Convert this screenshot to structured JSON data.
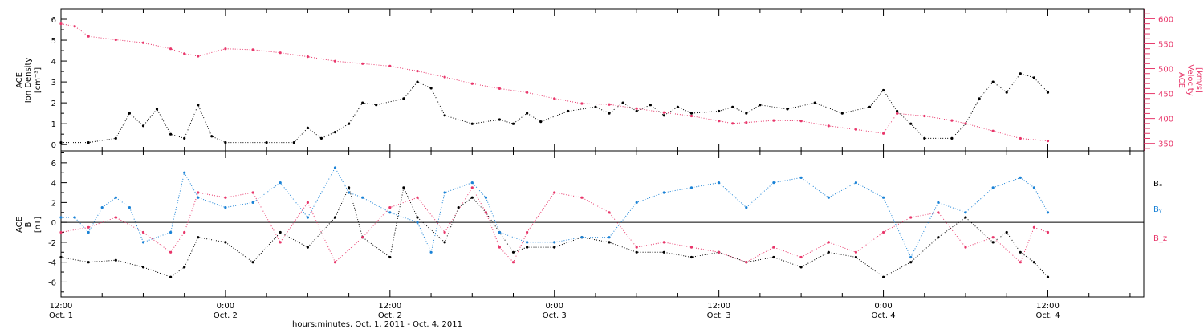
{
  "chart_data": [
    {
      "type": "scatter",
      "panel": "top",
      "xlabel": "hours:minutes, Oct.  1, 2011 - Oct.  4, 2011",
      "x_ticks_major": [
        {
          "hours": 0,
          "time": "12:00",
          "date": "Oct. 1"
        },
        {
          "hours": 12,
          "time": "0:00",
          "date": "Oct. 2"
        },
        {
          "hours": 24,
          "time": "12:00",
          "date": "Oct. 2"
        },
        {
          "hours": 36,
          "time": "0:00",
          "date": "Oct. 3"
        },
        {
          "hours": 48,
          "time": "12:00",
          "date": "Oct. 3"
        },
        {
          "hours": 60,
          "time": "0:00",
          "date": "Oct. 4"
        },
        {
          "hours": 72,
          "time": "12:00",
          "date": "Oct. 4"
        }
      ],
      "xlim_hours": [
        0,
        79
      ],
      "left_axis": {
        "label_lines": [
          "ACE",
          "Ion Density"
        ],
        "unit": "[cm⁻³]",
        "ylim": [
          -0.3,
          6.5
        ],
        "ticks": [
          0,
          1,
          2,
          3,
          4,
          5,
          6
        ],
        "color": "#000000"
      },
      "right_axis": {
        "label_lines": [
          "ACE",
          "Velocity"
        ],
        "unit": "[km/s]",
        "ylim": [
          335,
          620
        ],
        "ticks": [
          350,
          400,
          450,
          500,
          550,
          600
        ],
        "color": "#e8366a"
      },
      "series": [
        {
          "axis": "left",
          "color": "#000000",
          "points_hours_value": [
            [
              0,
              0.1
            ],
            [
              2,
              0.1
            ],
            [
              4,
              0.3
            ],
            [
              5,
              1.5
            ],
            [
              6,
              0.9
            ],
            [
              7,
              1.7
            ],
            [
              8,
              0.5
            ],
            [
              9,
              0.3
            ],
            [
              10,
              1.9
            ],
            [
              11,
              0.4
            ],
            [
              12,
              0.1
            ],
            [
              15,
              0.1
            ],
            [
              17,
              0.1
            ],
            [
              18,
              0.8
            ],
            [
              19,
              0.3
            ],
            [
              20,
              0.6
            ],
            [
              21,
              1.0
            ],
            [
              22,
              2.0
            ],
            [
              23,
              1.9
            ],
            [
              25,
              2.2
            ],
            [
              26,
              3.0
            ],
            [
              27,
              2.7
            ],
            [
              28,
              1.4
            ],
            [
              30,
              1.0
            ],
            [
              32,
              1.2
            ],
            [
              33,
              1.0
            ],
            [
              34,
              1.5
            ],
            [
              35,
              1.1
            ],
            [
              37,
              1.6
            ],
            [
              39,
              1.8
            ],
            [
              40,
              1.5
            ],
            [
              41,
              2.0
            ],
            [
              42,
              1.6
            ],
            [
              43,
              1.9
            ],
            [
              44,
              1.4
            ],
            [
              45,
              1.8
            ],
            [
              46,
              1.5
            ],
            [
              48,
              1.6
            ],
            [
              49,
              1.8
            ],
            [
              50,
              1.5
            ],
            [
              51,
              1.9
            ],
            [
              53,
              1.7
            ],
            [
              55,
              2.0
            ],
            [
              57,
              1.5
            ],
            [
              59,
              1.8
            ],
            [
              60,
              2.6
            ],
            [
              61,
              1.6
            ],
            [
              62,
              1.0
            ],
            [
              63,
              0.3
            ],
            [
              65,
              0.3
            ],
            [
              66,
              1.0
            ],
            [
              67,
              2.2
            ],
            [
              68,
              3.0
            ],
            [
              69,
              2.5
            ],
            [
              70,
              3.4
            ],
            [
              71,
              3.2
            ],
            [
              72,
              2.5
            ]
          ]
        },
        {
          "axis": "right",
          "color": "#e8366a",
          "points_hours_value": [
            [
              0,
              590
            ],
            [
              1,
              585
            ],
            [
              2,
              565
            ],
            [
              4,
              558
            ],
            [
              6,
              552
            ],
            [
              8,
              540
            ],
            [
              9,
              530
            ],
            [
              10,
              525
            ],
            [
              12,
              540
            ],
            [
              14,
              538
            ],
            [
              16,
              532
            ],
            [
              18,
              524
            ],
            [
              20,
              515
            ],
            [
              22,
              510
            ],
            [
              24,
              505
            ],
            [
              26,
              495
            ],
            [
              28,
              483
            ],
            [
              30,
              470
            ],
            [
              32,
              460
            ],
            [
              34,
              452
            ],
            [
              36,
              440
            ],
            [
              38,
              430
            ],
            [
              40,
              428
            ],
            [
              42,
              420
            ],
            [
              44,
              412
            ],
            [
              46,
              405
            ],
            [
              48,
              395
            ],
            [
              49,
              390
            ],
            [
              50,
              392
            ],
            [
              52,
              396
            ],
            [
              54,
              395
            ],
            [
              56,
              385
            ],
            [
              58,
              378
            ],
            [
              60,
              370
            ],
            [
              61,
              410
            ],
            [
              63,
              405
            ],
            [
              65,
              396
            ],
            [
              66,
              390
            ],
            [
              68,
              375
            ],
            [
              70,
              360
            ],
            [
              72,
              355
            ]
          ]
        }
      ]
    },
    {
      "type": "scatter",
      "panel": "bottom",
      "left_axis": {
        "label_lines": [
          "ACE",
          "B"
        ],
        "unit": "[nT]",
        "ylim": [
          -7.5,
          7.2
        ],
        "ticks": [
          -6,
          -4,
          -2,
          0,
          2,
          4,
          6
        ],
        "zero_line": true
      },
      "legend": [
        "Bₓ",
        "Bᵧ",
        "B_z"
      ],
      "legend_placement": "right",
      "series": [
        {
          "name": "Bₓ",
          "color": "#000000",
          "points_hours_value": [
            [
              0,
              -3.5
            ],
            [
              2,
              -4.0
            ],
            [
              4,
              -3.8
            ],
            [
              6,
              -4.5
            ],
            [
              8,
              -5.5
            ],
            [
              9,
              -4.5
            ],
            [
              10,
              -1.5
            ],
            [
              12,
              -2.0
            ],
            [
              14,
              -4.0
            ],
            [
              16,
              -1.0
            ],
            [
              18,
              -2.5
            ],
            [
              20,
              0.5
            ],
            [
              21,
              3.5
            ],
            [
              22,
              -1.5
            ],
            [
              24,
              -3.5
            ],
            [
              25,
              3.5
            ],
            [
              26,
              0.5
            ],
            [
              28,
              -2.0
            ],
            [
              29,
              1.5
            ],
            [
              30,
              2.5
            ],
            [
              31,
              1.0
            ],
            [
              32,
              -1.0
            ],
            [
              33,
              -3.0
            ],
            [
              34,
              -2.5
            ],
            [
              36,
              -2.5
            ],
            [
              38,
              -1.5
            ],
            [
              40,
              -2.0
            ],
            [
              42,
              -3.0
            ],
            [
              44,
              -3.0
            ],
            [
              46,
              -3.5
            ],
            [
              48,
              -3.0
            ],
            [
              50,
              -4.0
            ],
            [
              52,
              -3.5
            ],
            [
              54,
              -4.5
            ],
            [
              56,
              -3.0
            ],
            [
              58,
              -3.5
            ],
            [
              60,
              -5.5
            ],
            [
              62,
              -4.0
            ],
            [
              64,
              -1.5
            ],
            [
              66,
              0.5
            ],
            [
              68,
              -2.0
            ],
            [
              69,
              -1.0
            ],
            [
              70,
              -3.0
            ],
            [
              71,
              -4.0
            ],
            [
              72,
              -5.5
            ]
          ]
        },
        {
          "name": "Bᵧ",
          "color": "#1a82d6",
          "points_hours_value": [
            [
              0,
              0.5
            ],
            [
              1,
              0.5
            ],
            [
              2,
              -1.0
            ],
            [
              3,
              1.5
            ],
            [
              4,
              2.5
            ],
            [
              5,
              1.5
            ],
            [
              6,
              -2.0
            ],
            [
              8,
              -1.0
            ],
            [
              9,
              5.0
            ],
            [
              10,
              2.5
            ],
            [
              12,
              1.5
            ],
            [
              14,
              2.0
            ],
            [
              16,
              4.0
            ],
            [
              18,
              0.5
            ],
            [
              20,
              5.5
            ],
            [
              21,
              3.0
            ],
            [
              22,
              2.5
            ],
            [
              24,
              1.0
            ],
            [
              26,
              0.0
            ],
            [
              27,
              -3.0
            ],
            [
              28,
              3.0
            ],
            [
              30,
              4.0
            ],
            [
              31,
              2.5
            ],
            [
              32,
              -1.0
            ],
            [
              34,
              -2.0
            ],
            [
              36,
              -2.0
            ],
            [
              38,
              -1.5
            ],
            [
              40,
              -1.5
            ],
            [
              42,
              2.0
            ],
            [
              44,
              3.0
            ],
            [
              46,
              3.5
            ],
            [
              48,
              4.0
            ],
            [
              50,
              1.5
            ],
            [
              52,
              4.0
            ],
            [
              54,
              4.5
            ],
            [
              56,
              2.5
            ],
            [
              58,
              4.0
            ],
            [
              60,
              2.5
            ],
            [
              62,
              -3.5
            ],
            [
              64,
              2.0
            ],
            [
              66,
              1.0
            ],
            [
              68,
              3.5
            ],
            [
              70,
              4.5
            ],
            [
              71,
              3.5
            ],
            [
              72,
              1.0
            ]
          ]
        },
        {
          "name": "B_z",
          "color": "#e8366a",
          "points_hours_value": [
            [
              0,
              -1.0
            ],
            [
              2,
              -0.5
            ],
            [
              4,
              0.5
            ],
            [
              6,
              -1.0
            ],
            [
              8,
              -3.0
            ],
            [
              9,
              -1.0
            ],
            [
              10,
              3.0
            ],
            [
              12,
              2.5
            ],
            [
              14,
              3.0
            ],
            [
              16,
              -2.0
            ],
            [
              18,
              2.0
            ],
            [
              20,
              -4.0
            ],
            [
              22,
              -1.5
            ],
            [
              24,
              1.5
            ],
            [
              26,
              2.5
            ],
            [
              28,
              -1.0
            ],
            [
              30,
              3.5
            ],
            [
              31,
              1.0
            ],
            [
              32,
              -2.5
            ],
            [
              33,
              -4.0
            ],
            [
              34,
              -1.0
            ],
            [
              36,
              3.0
            ],
            [
              38,
              2.5
            ],
            [
              40,
              1.0
            ],
            [
              42,
              -2.5
            ],
            [
              44,
              -2.0
            ],
            [
              46,
              -2.5
            ],
            [
              48,
              -3.0
            ],
            [
              50,
              -4.0
            ],
            [
              52,
              -2.5
            ],
            [
              54,
              -3.5
            ],
            [
              56,
              -2.0
            ],
            [
              58,
              -3.0
            ],
            [
              60,
              -1.0
            ],
            [
              62,
              0.5
            ],
            [
              64,
              1.0
            ],
            [
              66,
              -2.5
            ],
            [
              68,
              -1.5
            ],
            [
              70,
              -4.0
            ],
            [
              71,
              -0.5
            ],
            [
              72,
              -1.0
            ]
          ]
        }
      ]
    }
  ]
}
